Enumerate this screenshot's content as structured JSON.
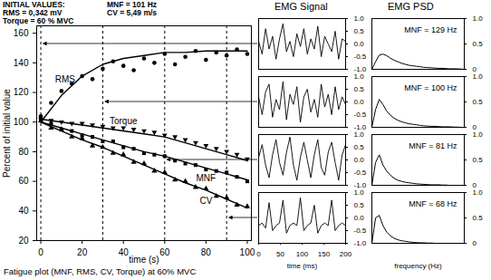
{
  "chart_data": [
    {
      "type": "scatter",
      "annotations": [
        "INITIAL VALUES:",
        "MNF = 101 Hz",
        "RMS = 0,342 mV",
        "CV = 5,49 m/s",
        "Torque = 60 % MVC"
      ],
      "caption": "Fatigue plot (MNF, RMS, CV, Torque) at 60% MVC",
      "xlabel": "time (s)",
      "ylabel": "Percent of initial value",
      "xlim": [
        -2,
        102
      ],
      "ylim": [
        20,
        165
      ],
      "xticks": [
        0,
        20,
        40,
        60,
        80,
        100
      ],
      "yticks": [
        20,
        40,
        60,
        80,
        100,
        120,
        140,
        160
      ],
      "epochs": [
        0,
        30,
        60,
        90
      ],
      "series": [
        {
          "name": "RMS",
          "color": "#000000",
          "marker": "circle",
          "x": [
            0,
            5,
            10,
            15,
            20,
            25,
            30,
            35,
            40,
            45,
            50,
            55,
            60,
            65,
            70,
            75,
            80,
            85,
            90,
            95,
            100
          ],
          "values": [
            104,
            113,
            121,
            126,
            131,
            129,
            136,
            141,
            138,
            135,
            143,
            140,
            146,
            139,
            144,
            148,
            142,
            147,
            145,
            149,
            146
          ],
          "fit_x": [
            0,
            10,
            20,
            30,
            40,
            50,
            60,
            70,
            80,
            90,
            100
          ],
          "fit": [
            100,
            118,
            131,
            139,
            143,
            145,
            147,
            147,
            148,
            148,
            148
          ]
        },
        {
          "name": "Torque",
          "color": "#000000",
          "marker": "triangle-down",
          "x": [
            0,
            5,
            10,
            15,
            20,
            25,
            30,
            35,
            40,
            45,
            50,
            55,
            60,
            65,
            70,
            75,
            80,
            85,
            90,
            95,
            100
          ],
          "values": [
            102,
            101,
            100,
            99,
            99,
            98,
            97,
            96,
            96,
            95,
            94,
            93,
            91,
            90,
            88,
            86,
            84,
            82,
            80,
            78,
            75
          ],
          "fit_x": [
            0,
            10,
            20,
            30,
            40,
            50,
            60,
            70,
            80,
            90,
            100
          ],
          "fit": [
            102,
            100,
            98,
            96,
            94,
            92,
            90,
            86,
            82,
            78,
            74
          ]
        },
        {
          "name": "MNF",
          "color": "#000000",
          "marker": "square",
          "x": [
            0,
            5,
            10,
            15,
            20,
            25,
            30,
            35,
            40,
            45,
            50,
            55,
            60,
            65,
            70,
            75,
            80,
            85,
            90,
            95,
            100
          ],
          "values": [
            101,
            99,
            95,
            94,
            91,
            90,
            87,
            87,
            83,
            82,
            79,
            78,
            77,
            74,
            72,
            71,
            68,
            67,
            66,
            63,
            60
          ],
          "fit_x": [
            0,
            10,
            20,
            30,
            40,
            50,
            60,
            70,
            80,
            90,
            100
          ],
          "fit": [
            100,
            96,
            92,
            88,
            84,
            80,
            77,
            73,
            69,
            65,
            61
          ]
        },
        {
          "name": "CV",
          "color": "#000000",
          "marker": "triangle",
          "x": [
            0,
            5,
            10,
            15,
            20,
            25,
            30,
            35,
            40,
            45,
            50,
            55,
            60,
            65,
            70,
            75,
            80,
            85,
            90,
            95,
            100
          ],
          "values": [
            101,
            96,
            95,
            90,
            89,
            84,
            83,
            79,
            78,
            73,
            72,
            67,
            66,
            61,
            60,
            56,
            55,
            50,
            49,
            44,
            43
          ],
          "fit_x": [
            0,
            10,
            20,
            30,
            40,
            50,
            60,
            70,
            80,
            90,
            100
          ],
          "fit": [
            100,
            94,
            88,
            83,
            77,
            71,
            65,
            59,
            54,
            48,
            42
          ]
        }
      ]
    },
    {
      "type": "line",
      "title": "EMG Signal",
      "tick_labels": "y",
      "xlim": [
        0,
        200
      ],
      "ylim": [
        -1,
        1
      ],
      "yticks": [
        {
          "value": -1,
          "label": "-1.0"
        },
        -0.5,
        {
          "value": 0,
          "label": "0.0"
        },
        0.5,
        {
          "value": 1,
          "label": "1.0"
        }
      ],
      "x": [
        0,
        8,
        16,
        24,
        32,
        40,
        48,
        56,
        64,
        72,
        80,
        88,
        96,
        104,
        112,
        120,
        128,
        136,
        144,
        152,
        160,
        168,
        176,
        184,
        192,
        200
      ],
      "values": [
        0.1,
        -0.4,
        0.6,
        -0.2,
        0.3,
        -0.6,
        0.2,
        0.8,
        -0.3,
        0.1,
        -0.5,
        0.4,
        -0.1,
        0.6,
        -0.4,
        0.2,
        -0.2,
        0.7,
        -0.5,
        0.3,
        0.0,
        -0.3,
        0.5,
        -0.6,
        0.2,
        0.1
      ]
    },
    {
      "type": "line",
      "tick_labels": "y",
      "xlim": [
        0,
        200
      ],
      "ylim": [
        -1,
        1
      ],
      "yticks": [
        {
          "value": -1,
          "label": "-1.0"
        },
        -0.5,
        {
          "value": 0,
          "label": "0.0"
        },
        0.5,
        {
          "value": 1,
          "label": "1.0"
        }
      ],
      "x": [
        0,
        8,
        16,
        24,
        32,
        40,
        48,
        56,
        64,
        72,
        80,
        88,
        96,
        104,
        112,
        120,
        128,
        136,
        144,
        152,
        160,
        168,
        176,
        184,
        192,
        200
      ],
      "values": [
        0.2,
        -0.5,
        0.4,
        0.7,
        -0.6,
        0.1,
        -0.3,
        0.8,
        -0.7,
        0.3,
        -0.1,
        0.6,
        -0.8,
        0.2,
        0.5,
        -0.4,
        0.1,
        -0.6,
        0.7,
        -0.2,
        0.3,
        -0.5,
        0.6,
        -0.3,
        0.2,
        -0.1
      ]
    },
    {
      "type": "line",
      "tick_labels": "y",
      "xlim": [
        0,
        200
      ],
      "ylim": [
        -1,
        1
      ],
      "yticks": [
        {
          "value": -1,
          "label": "-1.0"
        },
        -0.5,
        {
          "value": 0,
          "label": "0.0"
        },
        0.5,
        {
          "value": 1,
          "label": "1.0"
        }
      ],
      "x": [
        0,
        8,
        16,
        24,
        32,
        40,
        48,
        56,
        64,
        72,
        80,
        88,
        96,
        104,
        112,
        120,
        128,
        136,
        144,
        152,
        160,
        168,
        176,
        184,
        192,
        200
      ],
      "values": [
        0.1,
        0.6,
        -0.2,
        -0.7,
        0.2,
        0.8,
        -0.1,
        -0.6,
        0.3,
        0.9,
        -0.2,
        -0.8,
        0.1,
        0.7,
        0.0,
        -0.7,
        0.2,
        0.8,
        -0.3,
        -0.6,
        0.3,
        0.7,
        -0.1,
        -0.8,
        0.2,
        0.6
      ]
    },
    {
      "type": "line",
      "xlabel": "time (ms)",
      "xlim": [
        0,
        200
      ],
      "ylim": [
        -1,
        1
      ],
      "xticks": [
        0,
        50,
        100,
        150,
        200
      ],
      "yticks": [
        {
          "value": -1,
          "label": "-1.0"
        },
        -0.5,
        {
          "value": 0,
          "label": "0.0"
        },
        0.5,
        {
          "value": 1,
          "label": "1.0"
        }
      ],
      "x": [
        0,
        8,
        16,
        24,
        32,
        40,
        48,
        56,
        64,
        72,
        80,
        88,
        96,
        104,
        112,
        120,
        128,
        136,
        144,
        152,
        160,
        168,
        176,
        184,
        192,
        200
      ],
      "values": [
        -0.3,
        -0.2,
        -0.4,
        0.6,
        -0.5,
        -0.3,
        -0.2,
        0.7,
        -0.6,
        -0.3,
        -0.2,
        -0.3,
        0.8,
        -0.5,
        -0.3,
        -0.2,
        0.5,
        -0.6,
        -0.3,
        -0.2,
        -0.3,
        0.7,
        -0.5,
        -0.3,
        -0.2,
        -0.3
      ]
    },
    {
      "type": "area",
      "title": "EMG PSD",
      "tick_labels": "y",
      "annotations": [
        "MNF = 129 Hz"
      ],
      "xlim": [
        0,
        500
      ],
      "ylim": [
        0,
        1
      ],
      "yticks": [
        0,
        0.5,
        {
          "value": 1,
          "label": "1.0"
        }
      ],
      "x": [
        0,
        20,
        40,
        60,
        80,
        100,
        120,
        140,
        160,
        180,
        200,
        220,
        240,
        260,
        280,
        300,
        320,
        340,
        360,
        380,
        400,
        420,
        440,
        460,
        480,
        500
      ],
      "values": [
        0,
        0.15,
        0.28,
        0.3,
        0.27,
        0.22,
        0.18,
        0.15,
        0.12,
        0.1,
        0.08,
        0.07,
        0.06,
        0.05,
        0.04,
        0.035,
        0.03,
        0.025,
        0.02,
        0.02,
        0.015,
        0.01,
        0.01,
        0.01,
        0.005,
        0
      ]
    },
    {
      "type": "area",
      "tick_labels": "y",
      "annotations": [
        "MNF = 100 Hz"
      ],
      "xlim": [
        0,
        500
      ],
      "ylim": [
        0,
        1
      ],
      "yticks": [
        0,
        0.5,
        {
          "value": 1,
          "label": "1.0"
        }
      ],
      "x": [
        0,
        20,
        40,
        60,
        80,
        100,
        120,
        140,
        160,
        180,
        200,
        220,
        240,
        260,
        280,
        300,
        320,
        340,
        360,
        380,
        400,
        420,
        440,
        460,
        480,
        500
      ],
      "values": [
        0,
        0.35,
        0.55,
        0.45,
        0.32,
        0.24,
        0.18,
        0.14,
        0.11,
        0.09,
        0.07,
        0.06,
        0.05,
        0.04,
        0.03,
        0.025,
        0.02,
        0.02,
        0.015,
        0.01,
        0.01,
        0.01,
        0.005,
        0.005,
        0,
        0
      ]
    },
    {
      "type": "area",
      "tick_labels": "y",
      "annotations": [
        "MNF = 81 Hz"
      ],
      "xlim": [
        0,
        500
      ],
      "ylim": [
        0,
        1
      ],
      "yticks": [
        0,
        0.5,
        {
          "value": 1,
          "label": "1.0"
        }
      ],
      "x": [
        0,
        20,
        40,
        60,
        80,
        100,
        120,
        140,
        160,
        180,
        200,
        220,
        240,
        260,
        280,
        300,
        320,
        340,
        360,
        380,
        400,
        420,
        440,
        460,
        480,
        500
      ],
      "values": [
        0,
        0.45,
        0.6,
        0.4,
        0.28,
        0.2,
        0.14,
        0.1,
        0.08,
        0.06,
        0.05,
        0.04,
        0.03,
        0.025,
        0.02,
        0.015,
        0.01,
        0.01,
        0.01,
        0.005,
        0.005,
        0,
        0,
        0,
        0,
        0
      ]
    },
    {
      "type": "area",
      "tick_labels": "y",
      "xlabel": "frequency (Hz)",
      "annotations": [
        "MNF = 68 Hz"
      ],
      "xlim": [
        0,
        500
      ],
      "ylim": [
        0,
        1
      ],
      "yticks": [
        0,
        0.5,
        {
          "value": 1,
          "label": "1.0"
        }
      ],
      "x": [
        0,
        20,
        40,
        60,
        80,
        100,
        120,
        140,
        160,
        180,
        200,
        220,
        240,
        260,
        280,
        300,
        320,
        340,
        360,
        380,
        400,
        420,
        440,
        460,
        480,
        500
      ],
      "values": [
        0,
        0.5,
        0.55,
        0.35,
        0.22,
        0.15,
        0.1,
        0.07,
        0.05,
        0.04,
        0.03,
        0.02,
        0.015,
        0.01,
        0.01,
        0.005,
        0.005,
        0,
        0,
        0,
        0,
        0,
        0,
        0,
        0,
        0
      ]
    }
  ]
}
